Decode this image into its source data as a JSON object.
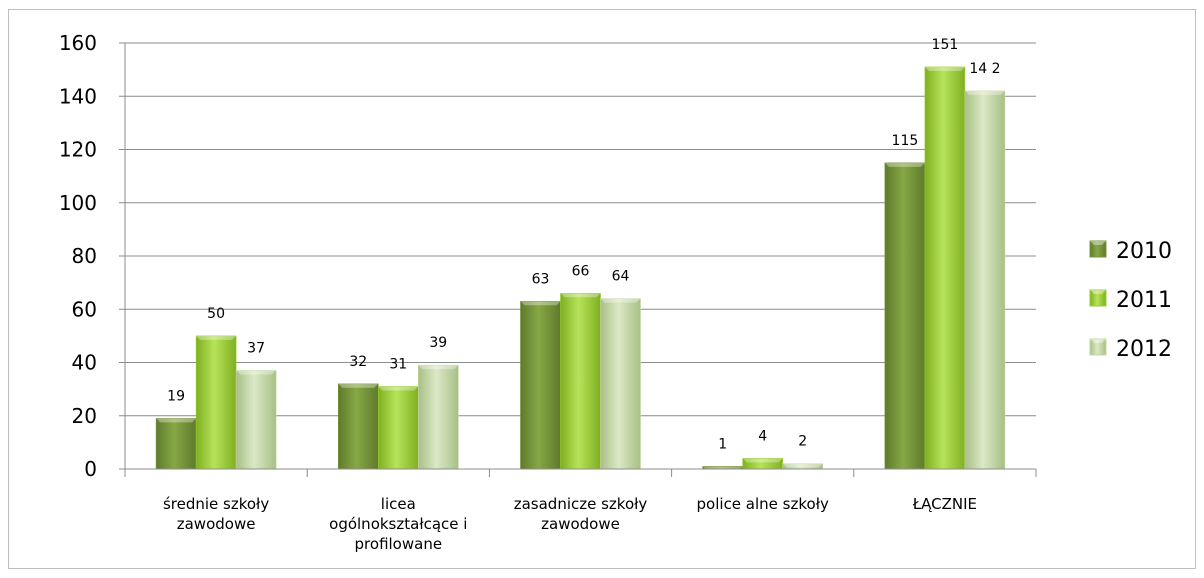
{
  "chart_data": {
    "type": "bar",
    "title": "",
    "xlabel": "",
    "ylabel": "",
    "ylim": [
      0,
      160
    ],
    "yticks": [
      "0",
      "20",
      "40",
      "60",
      "80",
      "100",
      "120",
      "140",
      "160"
    ],
    "grid": true,
    "legend_position": "right",
    "categories": [
      [
        "średnie szkoły",
        "zawodowe"
      ],
      [
        "licea",
        "ogólnokształcące i",
        "profilowane"
      ],
      [
        "zasadnicze szkoły",
        "zawodowe"
      ],
      [
        "police alne szkoły"
      ],
      [
        "ŁĄCZNIE"
      ]
    ],
    "series": [
      {
        "name": "2010",
        "values": [
          19,
          32,
          63,
          1,
          115
        ],
        "labels": [
          "19",
          "32",
          "63",
          "1",
          "115"
        ],
        "color": "#76953a"
      },
      {
        "name": "2011",
        "values": [
          50,
          31,
          66,
          4,
          151
        ],
        "labels": [
          "50",
          "31",
          "66",
          "4",
          "151"
        ],
        "color": "#9acd32"
      },
      {
        "name": "2012",
        "values": [
          37,
          39,
          64,
          2,
          142
        ],
        "labels": [
          "37",
          "39",
          "64",
          "2",
          "14 2"
        ],
        "color": "#c3d9a0"
      }
    ]
  }
}
